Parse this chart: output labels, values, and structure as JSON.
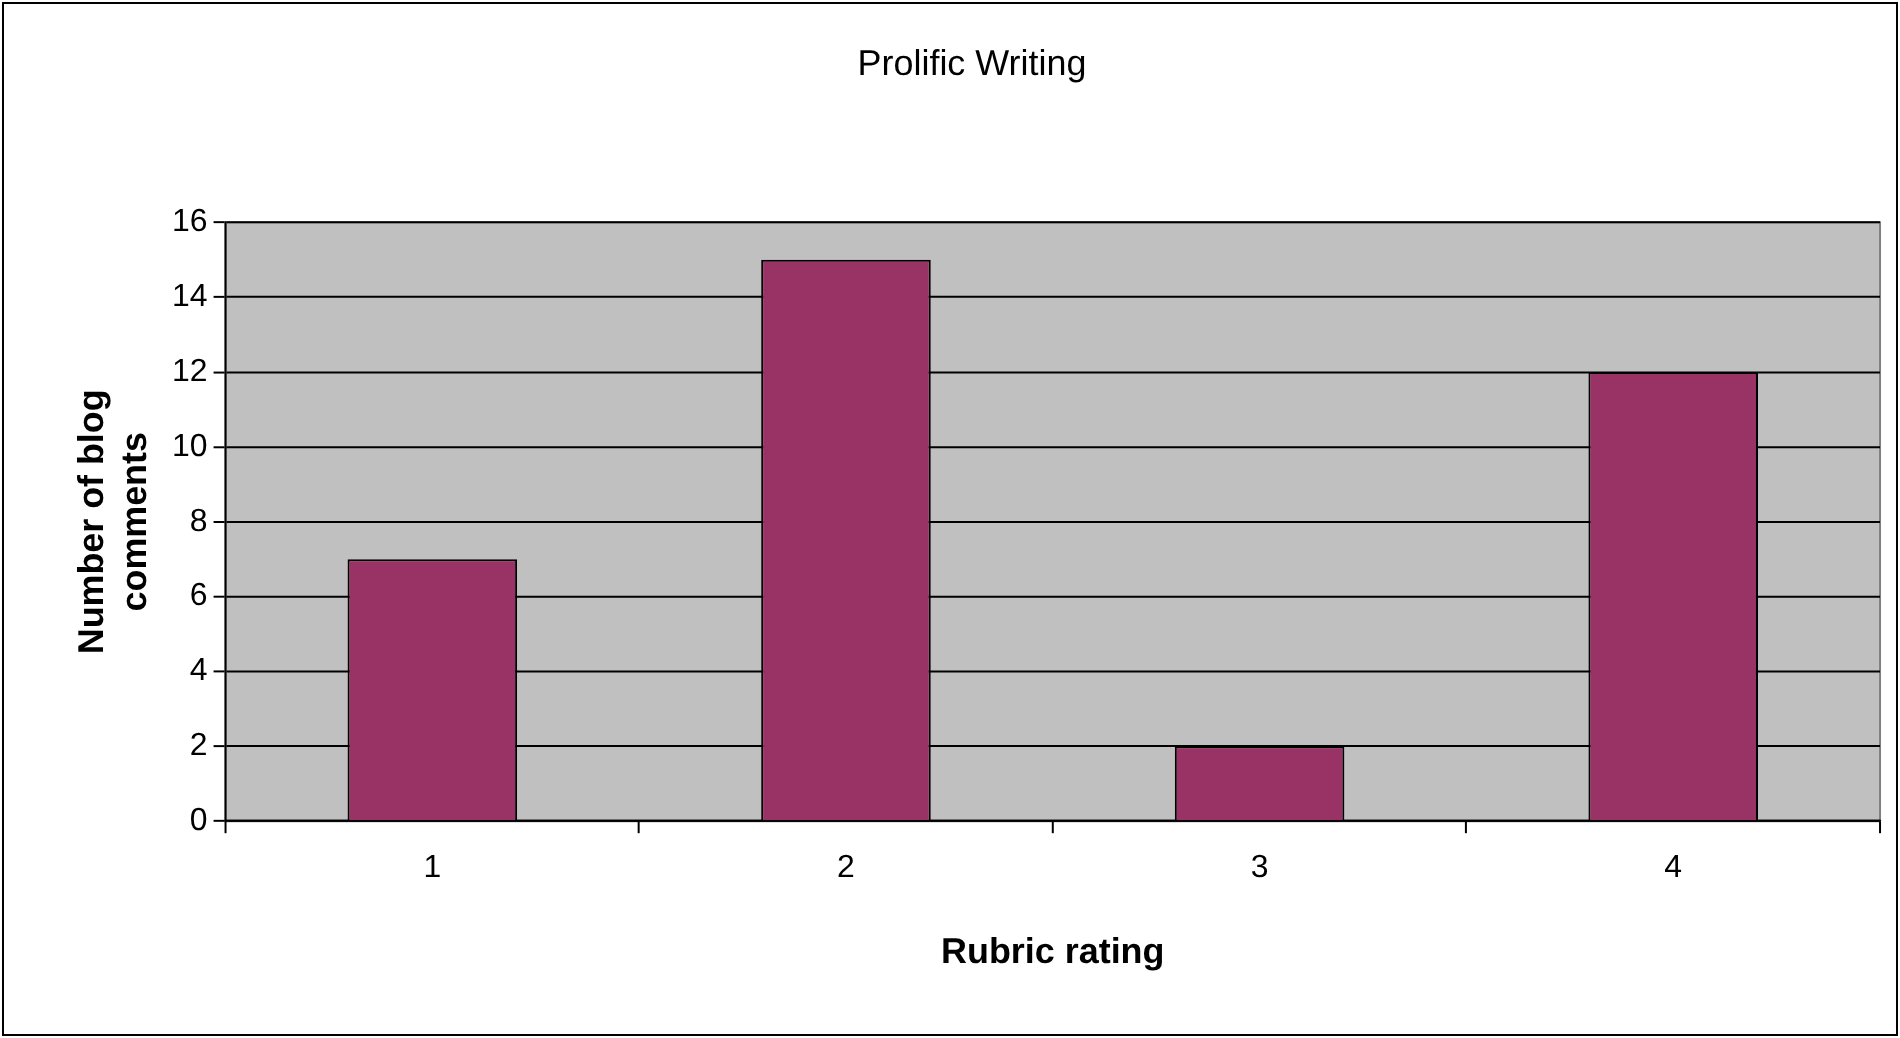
{
  "chart_data": {
    "type": "bar",
    "title": "Prolific Writing",
    "xlabel": "Rubric rating",
    "ylabel": "Number of blog comments",
    "categories": [
      "1",
      "2",
      "3",
      "4"
    ],
    "series": [
      {
        "color": "#993366",
        "values": [
          7,
          15,
          2,
          12
        ]
      }
    ],
    "ylim": [
      0,
      16
    ],
    "yticks": [
      0,
      2,
      4,
      6,
      8,
      10,
      12,
      14,
      16
    ],
    "grid": "y",
    "legend": false
  }
}
